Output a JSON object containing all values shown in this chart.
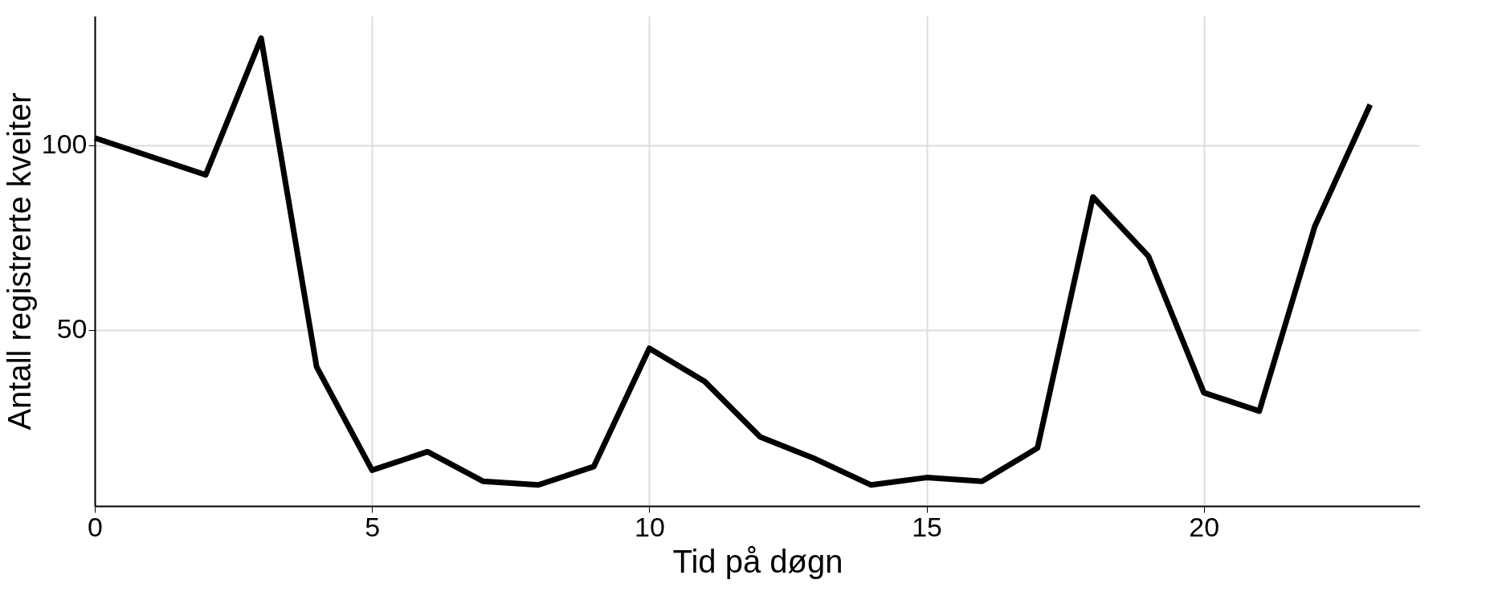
{
  "chart_data": {
    "type": "line",
    "xlabel": "Tid på døgn",
    "ylabel": "Antall registrerte kveiter",
    "x": [
      0,
      2,
      3,
      4,
      5,
      6,
      7,
      8,
      9,
      10,
      11,
      12,
      13,
      14,
      15,
      16,
      17,
      18,
      19,
      20,
      21,
      22,
      23
    ],
    "series": [
      {
        "color": "#000000",
        "values": [
          102,
          92,
          129,
          40,
          12,
          17,
          9,
          8,
          13,
          45,
          36,
          21,
          15,
          8,
          10,
          9,
          18,
          86,
          70,
          33,
          28,
          78,
          111
        ]
      }
    ],
    "xlim": [
      0,
      23.9
    ],
    "ylim": [
      2.3,
      135
    ],
    "xticks": [
      0,
      5,
      10,
      15,
      20
    ],
    "yticks": [
      50,
      100
    ],
    "grid": true,
    "marker": "none",
    "line_style": "solid"
  }
}
